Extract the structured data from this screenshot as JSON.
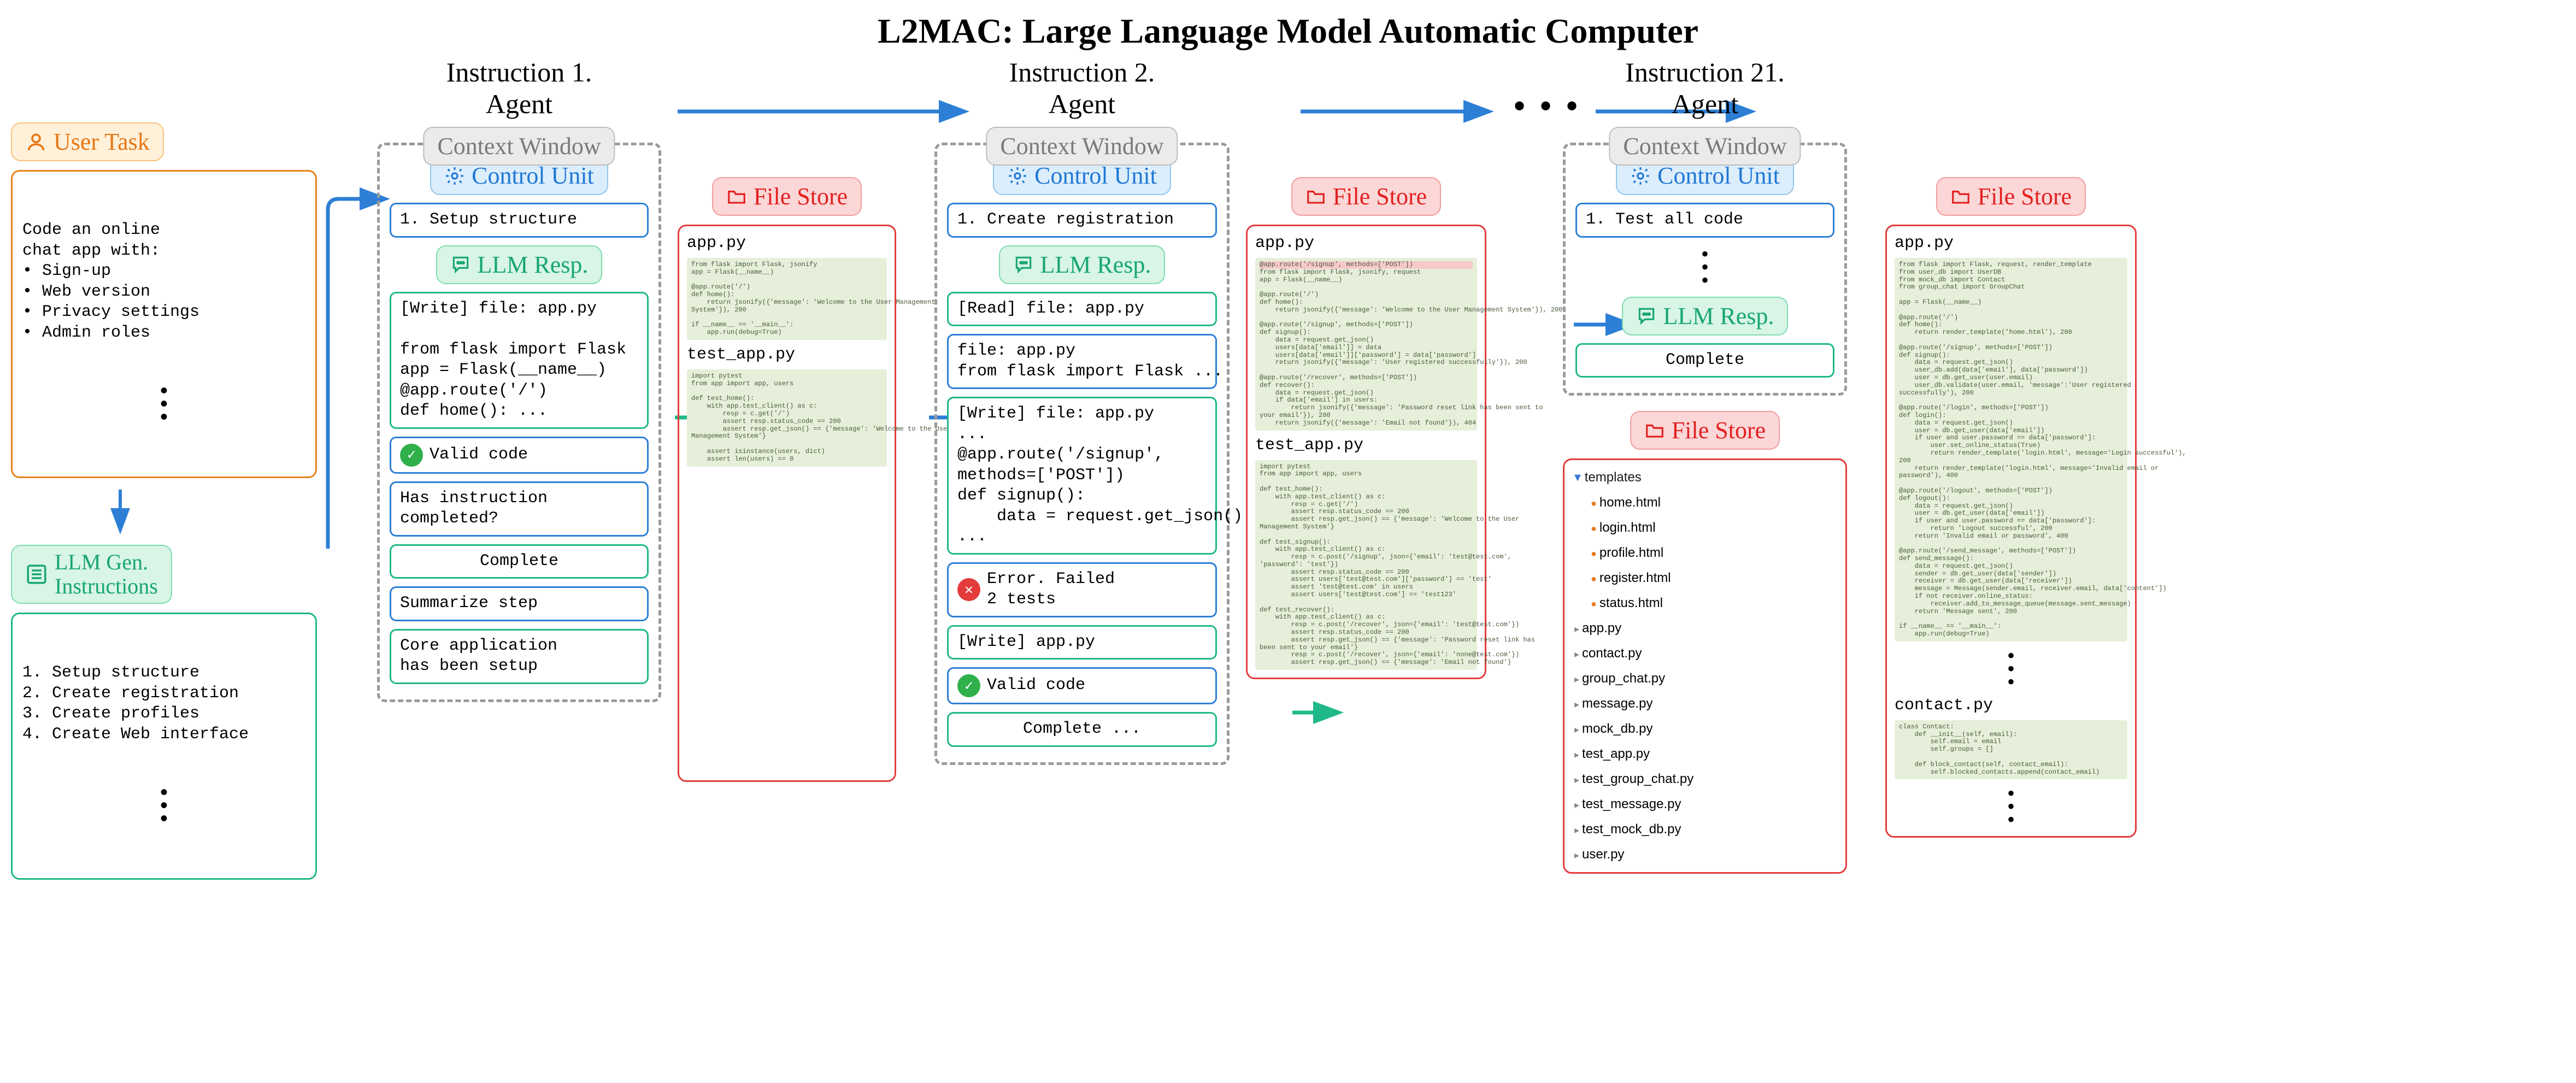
{
  "title": "L2MAC: Large Language Model Automatic Computer",
  "colors": {
    "orange": "#e67817",
    "teal": "#17a673",
    "blue": "#1f77d4",
    "red": "#e32020",
    "gray": "#7a7a7a",
    "arrow_blue": "#2d7fd6",
    "arrow_teal": "#1fb888",
    "code_bg": "#e6efd9"
  },
  "left": {
    "user_task_label": "User Task",
    "user_task_text": "Code an online\nchat app with:\n• Sign-up\n• Web version\n• Privacy settings\n• Admin roles",
    "llm_gen_label": "LLM Gen.\nInstructions",
    "llm_gen_text": "1. Setup structure\n2. Create registration\n3. Create profiles\n4. Create Web interface"
  },
  "agents": {
    "a1": {
      "header": "Instruction 1.\nAgent"
    },
    "a2": {
      "header": "Instruction 2.\nAgent"
    },
    "a3": {
      "header": "Instruction 21.\nAgent"
    }
  },
  "labels": {
    "context_window": "Context Window",
    "control_unit": "Control Unit",
    "llm_resp": "LLM Resp.",
    "file_store": "File Store"
  },
  "a1": {
    "control": "1. Setup structure",
    "write": "[Write] file: app.py\n\nfrom flask import Flask\napp = Flask(__name__)\n@app.route('/')\ndef home(): ...",
    "valid": "Valid code",
    "q": "Has instruction\ncompleted?",
    "complete": "Complete",
    "summ": "Summarize step",
    "summ_out": "Core application\nhas been setup",
    "fs": {
      "f1": "app.py",
      "c1": "from flask import Flask, jsonify\napp = Flask(__name__)\n\n@app.route('/')\ndef home():\n    return jsonify({'message': 'Welcome to the User Management\nSystem'}), 200\n\nif __name__ == '__main__':\n    app.run(debug=True)",
      "f2": "test_app.py",
      "c2": "import pytest\nfrom app import app, users\n\ndef test_home():\n    with app.test_client() as c:\n        resp = c.get('/')\n        assert resp.status_code == 200\n        assert resp.get_json() == {'message': 'Welcome to the User\nManagement System'}\n\n    assert isinstance(users, dict)\n    assert len(users) == 0"
    }
  },
  "a2": {
    "control": "1. Create registration",
    "read": "[Read] file: app.py",
    "file_echo": "file: app.py\nfrom flask import Flask ...",
    "write": "[Write] file: app.py\n...\n@app.route('/signup',\nmethods=['POST'])\ndef signup():\n    data = request.get_json()\n...",
    "err": "Error. Failed\n2 tests",
    "write2": "[Write] app.py",
    "valid": "Valid code",
    "complete": "Complete ...",
    "fs": {
      "f1": "app.py",
      "c1": "from flask import Flask, jsonify, request\napp = Flask(__name__)\n\n@app.route('/')\ndef home():\n    return jsonify({'message': 'Welcome to the User Management System'}), 200\n\n@app.route('/signup', methods=['POST'])\ndef signup():\n    data = request.get_json()\n    users[data['email']] = data\n    users[data['email']]['password'] = data['password']\n    return jsonify({'message': 'User registered successfully'}), 200\n\n@app.route('/recover', methods=['POST'])\ndef recover():\n    data = request.get_json()\n    if data['email'] in users:\n        return jsonify({'message': 'Password reset link has been sent to\nyour email'}), 200\n    return jsonify({'message': 'Email not found'}), 404",
      "f2": "test_app.py",
      "c2": "import pytest\nfrom app import app, users\n\ndef test_home():\n    with app.test_client() as c:\n        resp = c.get('/')\n        assert resp.status_code == 200\n        assert resp.get_json() == {'message': 'Welcome to the User\nManagement System'}\n\ndef test_signup():\n    with app.test_client() as c:\n        resp = c.post('/signup', json={'email': 'test@test.com',\n'password': 'test'})\n        assert resp.status_code == 200\n        assert users['test@test.com']['password'] == 'test'\n        assert 'test@test.com' in users\n        assert users['test@test.com'] == 'test123'\n\ndef test_recover():\n    with app.test_client() as c:\n        resp = c.post('/recover', json={'email': 'test@test.com'})\n        assert resp.status_code == 200\n        assert resp.get_json() == {'message': 'Password reset link has\nbeen sent to your email'}\n        resp = c.post('/recover', json={'email': 'none@test.com'})\n        assert resp.get_json() == {'message': 'Email not found'}"
    }
  },
  "a3": {
    "control": "1. Test all code",
    "complete": "Complete",
    "tree": {
      "folder": "templates",
      "html": [
        "home.html",
        "login.html",
        "profile.html",
        "register.html",
        "status.html"
      ],
      "py": [
        "app.py",
        "contact.py",
        "group_chat.py",
        "message.py",
        "mock_db.py",
        "test_app.py",
        "test_group_chat.py",
        "test_message.py",
        "test_mock_db.py",
        "user.py"
      ]
    },
    "fs2": {
      "f1": "app.py",
      "c1": "from flask import Flask, request, render_template\nfrom user_db import UserDB\nfrom mock_db import Contact\nfrom group_chat import GroupChat\n\napp = Flask(__name__)\n\n@app.route('/')\ndef home():\n    return render_template('home.html'), 200\n\n@app.route('/signup', methods=['POST'])\ndef signup():\n    data = request.get_json()\n    user_db.add(data['email'], data['password'])\n    user = db.get_user(user.email)\n    user_db.validate(user.email, 'message':'User registered\nsuccessfully'), 200\n\n@app.route('/login', methods=['POST'])\ndef login():\n    data = request.get_json()\n    user = db.get_user(data['email'])\n    if user and user.password == data['password']:\n        user.set_online_status(True)\n        return render_template('login.html', message='Login successful'),\n200\n    return render_template('login.html', message='Invalid email or\npassword'), 400\n\n@app.route('/logout', methods=['POST'])\ndef logout():\n    data = request.get_json()\n    user = db.get_user(data['email'])\n    if user and user.password == data['password']:\n        return 'Logout successful', 200\n    return 'Invalid email or password', 400\n\n@app.route('/send_message', methods=['POST'])\ndef send_message():\n    data = request.get_json()\n    sender = db.get_user(data['sender'])\n    receiver = db.get_user(data['receiver'])\n    message = Message(sender.email, receiver.email, data['content'])\n    if not receiver.online_status:\n        receiver.add_to_message_queue(message.sent_message)\n    return 'Message sent', 200\n\nif __name__ == '__main__':\n    app.run(debug=True)",
      "f2": "contact.py",
      "c2": "class Contact:\n    def __init__(self, email):\n        self.email = email\n        self.groups = []\n\n    def block_contact(self, contact_email):\n        self.blocked_contacts.append(contact_email)"
    }
  }
}
